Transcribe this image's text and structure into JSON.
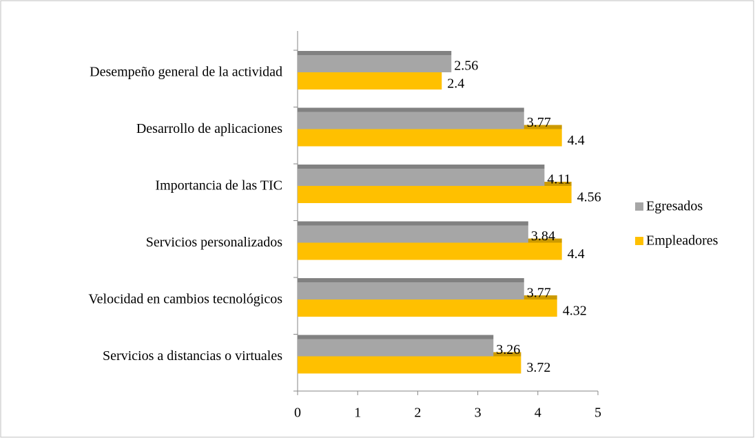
{
  "chart_data": {
    "type": "hbar",
    "categories": [
      "Desempeño general de la actividad",
      "Desarrollo de aplicaciones",
      "Importancia de las TIC",
      "Servicios personalizados",
      "Velocidad en cambios tecnológicos",
      "Servicios a distancias o virtuales"
    ],
    "series": [
      {
        "name": "Egresados",
        "color": "#a6a6a6",
        "values": [
          2.56,
          3.77,
          4.11,
          3.84,
          3.77,
          3.26
        ]
      },
      {
        "name": "Empleadores",
        "color": "#ffc000",
        "values": [
          2.4,
          4.4,
          4.56,
          4.4,
          4.32,
          3.72
        ]
      }
    ],
    "xlim": [
      0,
      5
    ],
    "xticks": [
      0,
      1,
      2,
      3,
      4,
      5
    ],
    "legend": "right"
  }
}
